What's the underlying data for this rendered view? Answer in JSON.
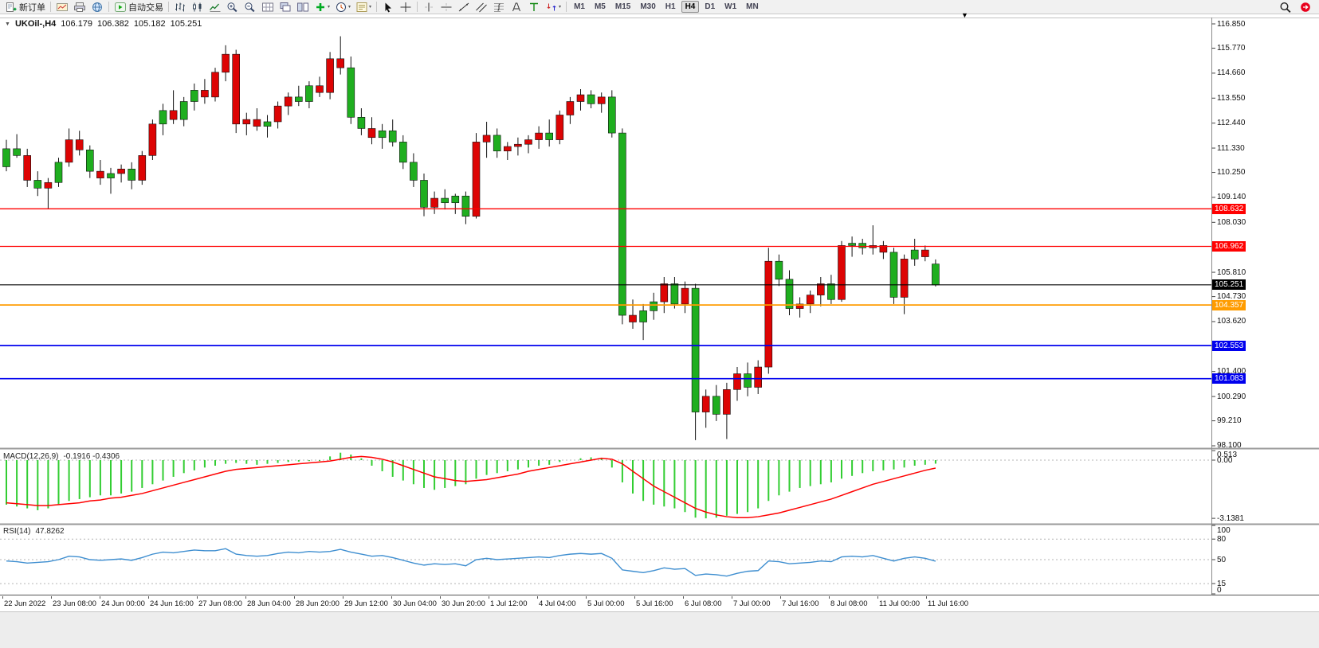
{
  "toolbar": {
    "items": [
      {
        "type": "button",
        "name": "new-order",
        "icon": "new-order",
        "label": "新订单"
      },
      {
        "type": "sep"
      },
      {
        "type": "button",
        "name": "charts",
        "icon": "chart-window"
      },
      {
        "type": "button",
        "name": "print-preview",
        "icon": "printer"
      },
      {
        "type": "button",
        "name": "web-community",
        "icon": "globe"
      },
      {
        "type": "sep"
      },
      {
        "type": "button",
        "name": "auto-trading",
        "icon": "play",
        "label": "自动交易"
      },
      {
        "type": "sep"
      },
      {
        "type": "button",
        "name": "bar-chart-mode",
        "icon": "bars"
      },
      {
        "type": "button",
        "name": "candlestick-mode",
        "icon": "candles"
      },
      {
        "type": "button",
        "name": "line-chart-mode",
        "icon": "linechart"
      },
      {
        "type": "button",
        "name": "zoom-in",
        "icon": "zoom-in"
      },
      {
        "type": "button",
        "name": "zoom-out",
        "icon": "zoom-out"
      },
      {
        "type": "button",
        "name": "auto-arrange",
        "icon": "grid"
      },
      {
        "type": "button",
        "name": "cascade-windows",
        "icon": "cascade"
      },
      {
        "type": "button",
        "name": "tile-windows",
        "icon": "tile"
      },
      {
        "type": "button",
        "name": "indicators",
        "icon": "plus-green",
        "dropdown": true
      },
      {
        "type": "button",
        "name": "periods",
        "icon": "clock",
        "dropdown": true
      },
      {
        "type": "button",
        "name": "templates",
        "icon": "template",
        "dropdown": true
      },
      {
        "type": "sep"
      },
      {
        "type": "button",
        "name": "cursor",
        "icon": "cursor"
      },
      {
        "type": "button",
        "name": "crosshair",
        "icon": "crosshair"
      },
      {
        "type": "sep"
      },
      {
        "type": "button",
        "name": "vertical-line",
        "icon": "vline"
      },
      {
        "type": "button",
        "name": "horizontal-line",
        "icon": "hline"
      },
      {
        "type": "button",
        "name": "trend-line",
        "icon": "trendline"
      },
      {
        "type": "button",
        "name": "equidistant-channel",
        "icon": "channel"
      },
      {
        "type": "button",
        "name": "fibonacci-retracement",
        "icon": "fibo"
      },
      {
        "type": "button",
        "name": "text",
        "icon": "text-a"
      },
      {
        "type": "button",
        "name": "text-label",
        "icon": "text-t"
      },
      {
        "type": "button",
        "name": "arrow-objects",
        "icon": "arrows",
        "dropdown": true
      },
      {
        "type": "sep"
      }
    ],
    "timeframes": {
      "options": [
        "M1",
        "M5",
        "M15",
        "M30",
        "H1",
        "H4",
        "D1",
        "W1",
        "MN"
      ],
      "active": "H4"
    },
    "right_items": [
      {
        "type": "button",
        "name": "search",
        "icon": "magnifier"
      },
      {
        "type": "button",
        "name": "community-account",
        "icon": "red-dot"
      }
    ]
  },
  "chart": {
    "info": {
      "symbol_period": "UKOil-,H4",
      "open": "106.179",
      "high": "106.382",
      "low": "105.182",
      "close": "105.251"
    },
    "price_axis_ticks": [
      "116.850",
      "115.770",
      "114.660",
      "113.550",
      "112.440",
      "111.330",
      "110.250",
      "109.140",
      "108.030",
      "105.810",
      "104.730",
      "103.620",
      "101.400",
      "100.290",
      "99.210",
      "98.100"
    ],
    "levels": [
      {
        "price": "108.632",
        "value": 108.632,
        "color": "#ff0000",
        "width": 1.3
      },
      {
        "price": "106.962",
        "value": 106.962,
        "color": "#ff0000",
        "width": 1.3
      },
      {
        "price": "105.251",
        "value": 105.251,
        "color": "#000000",
        "width": 1.1
      },
      {
        "price": "104.357",
        "value": 104.357,
        "color": "#ff9c00",
        "width": 1.7
      },
      {
        "price": "102.553",
        "value": 102.553,
        "color": "#0000ee",
        "width": 1.7
      },
      {
        "price": "101.083",
        "value": 101.083,
        "color": "#0000ee",
        "width": 1.7
      }
    ],
    "time_axis": [
      "22 Jun 2022",
      "23 Jun 08:00",
      "24 Jun 00:00",
      "24 Jun 16:00",
      "27 Jun 08:00",
      "28 Jun 04:00",
      "28 Jun 20:00",
      "29 Jun 12:00",
      "30 Jun 04:00",
      "30 Jun 20:00",
      "1 Jul 12:00",
      "4 Jul 04:00",
      "5 Jul 00:00",
      "5 Jul 16:00",
      "6 Jul 08:00",
      "7 Jul 00:00",
      "7 Jul 16:00",
      "8 Jul 08:00",
      "11 Jul 00:00",
      "11 Jul 16:00"
    ]
  },
  "macd": {
    "label": "MACD(12,26,9)",
    "values_text": "-0.1916 -0.4306",
    "scale": [
      "0.513",
      "0.00",
      "-3.1381"
    ],
    "scale_values": [
      0.513,
      0,
      -3.1381
    ]
  },
  "rsi": {
    "label": "RSI(14)",
    "value_text": "47.8262",
    "scale": [
      "100",
      "80",
      "50",
      "15",
      "0"
    ],
    "levels_dashed": [
      80,
      50,
      15
    ]
  },
  "colors": {
    "candle_green": "#1fae1f",
    "candle_red": "#dd0404",
    "macd_hist": "#32cd32",
    "macd_signal": "#ff0000",
    "rsi_line": "#3e8ed0"
  },
  "chart_data": [
    {
      "type": "candlestick",
      "title": "UKOil- H4",
      "price_range": [
        98.1,
        116.85
      ],
      "columns": [
        "open",
        "high",
        "low",
        "close",
        "color"
      ],
      "candles": [
        [
          110.5,
          111.7,
          110.3,
          111.3,
          "g"
        ],
        [
          111.3,
          111.95,
          110.9,
          111.0,
          "g"
        ],
        [
          111.0,
          111.3,
          109.6,
          109.9,
          "r"
        ],
        [
          109.9,
          110.3,
          109.2,
          109.55,
          "g"
        ],
        [
          109.55,
          110.0,
          108.63,
          109.8,
          "r"
        ],
        [
          109.8,
          110.9,
          109.6,
          110.7,
          "g"
        ],
        [
          110.7,
          112.2,
          110.5,
          111.7,
          "r"
        ],
        [
          111.7,
          112.1,
          111.0,
          111.25,
          "r"
        ],
        [
          111.25,
          111.45,
          110.0,
          110.3,
          "g"
        ],
        [
          110.3,
          110.8,
          109.7,
          110.0,
          "r"
        ],
        [
          110.0,
          110.45,
          109.3,
          110.2,
          "g"
        ],
        [
          110.2,
          110.6,
          109.8,
          110.4,
          "r"
        ],
        [
          110.4,
          110.7,
          109.5,
          109.9,
          "g"
        ],
        [
          109.9,
          111.2,
          109.7,
          111.0,
          "r"
        ],
        [
          111.0,
          112.6,
          110.8,
          112.4,
          "r"
        ],
        [
          112.4,
          113.3,
          111.9,
          113.0,
          "g"
        ],
        [
          113.0,
          113.9,
          112.4,
          112.6,
          "r"
        ],
        [
          112.6,
          113.6,
          112.3,
          113.4,
          "g"
        ],
        [
          113.4,
          114.2,
          113.0,
          113.9,
          "g"
        ],
        [
          113.9,
          114.4,
          113.3,
          113.6,
          "r"
        ],
        [
          113.6,
          114.9,
          113.4,
          114.7,
          "r"
        ],
        [
          114.7,
          115.9,
          114.3,
          115.5,
          "r"
        ],
        [
          115.5,
          115.7,
          112.0,
          112.4,
          "r"
        ],
        [
          112.4,
          112.9,
          111.9,
          112.6,
          "r"
        ],
        [
          112.6,
          113.1,
          112.1,
          112.3,
          "r"
        ],
        [
          112.3,
          112.8,
          111.8,
          112.5,
          "g"
        ],
        [
          112.5,
          113.4,
          112.2,
          113.2,
          "r"
        ],
        [
          113.2,
          113.8,
          112.8,
          113.6,
          "r"
        ],
        [
          113.6,
          114.1,
          113.2,
          113.4,
          "g"
        ],
        [
          113.4,
          114.3,
          113.1,
          114.1,
          "g"
        ],
        [
          114.1,
          114.5,
          113.6,
          113.8,
          "r"
        ],
        [
          113.8,
          115.6,
          113.5,
          115.3,
          "r"
        ],
        [
          115.3,
          116.3,
          114.6,
          114.9,
          "r"
        ],
        [
          114.9,
          115.4,
          112.4,
          112.7,
          "g"
        ],
        [
          112.7,
          113.1,
          111.9,
          112.2,
          "g"
        ],
        [
          112.2,
          112.7,
          111.5,
          111.8,
          "r"
        ],
        [
          111.8,
          112.4,
          111.3,
          112.1,
          "g"
        ],
        [
          112.1,
          112.6,
          111.4,
          111.6,
          "g"
        ],
        [
          111.6,
          111.9,
          110.4,
          110.7,
          "g"
        ],
        [
          110.7,
          111.1,
          109.6,
          109.9,
          "g"
        ],
        [
          109.9,
          110.2,
          108.3,
          108.7,
          "g"
        ],
        [
          108.7,
          109.4,
          108.4,
          109.1,
          "r"
        ],
        [
          109.1,
          109.5,
          108.6,
          108.9,
          "g"
        ],
        [
          108.9,
          109.3,
          108.4,
          109.2,
          "g"
        ],
        [
          109.2,
          109.4,
          107.95,
          108.3,
          "g"
        ],
        [
          108.3,
          112.0,
          108.2,
          111.6,
          "r"
        ],
        [
          111.6,
          112.5,
          110.9,
          111.9,
          "r"
        ],
        [
          111.9,
          112.2,
          110.9,
          111.2,
          "g"
        ],
        [
          111.2,
          111.6,
          110.8,
          111.4,
          "r"
        ],
        [
          111.4,
          111.8,
          111.0,
          111.5,
          "r"
        ],
        [
          111.5,
          111.9,
          111.1,
          111.7,
          "r"
        ],
        [
          111.7,
          112.3,
          111.3,
          112.0,
          "r"
        ],
        [
          112.0,
          112.6,
          111.4,
          111.7,
          "g"
        ],
        [
          111.7,
          113.0,
          111.5,
          112.8,
          "r"
        ],
        [
          112.8,
          113.6,
          112.4,
          113.4,
          "r"
        ],
        [
          113.4,
          113.95,
          113.0,
          113.7,
          "r"
        ],
        [
          113.7,
          113.9,
          113.1,
          113.3,
          "g"
        ],
        [
          113.3,
          113.8,
          112.9,
          113.6,
          "r"
        ],
        [
          113.6,
          113.9,
          111.8,
          112.0,
          "g"
        ],
        [
          112.0,
          112.2,
          103.5,
          103.9,
          "g"
        ],
        [
          103.9,
          104.6,
          103.3,
          103.6,
          "r"
        ],
        [
          103.6,
          104.4,
          102.8,
          104.1,
          "g"
        ],
        [
          104.1,
          104.9,
          103.7,
          104.5,
          "g"
        ],
        [
          104.5,
          105.6,
          104.0,
          105.3,
          "r"
        ],
        [
          105.3,
          105.6,
          104.2,
          104.4,
          "g"
        ],
        [
          104.4,
          105.4,
          104.0,
          105.1,
          "r"
        ],
        [
          105.1,
          105.3,
          98.35,
          99.6,
          "g"
        ],
        [
          99.6,
          100.6,
          98.9,
          100.3,
          "r"
        ],
        [
          100.3,
          100.8,
          99.2,
          99.5,
          "g"
        ],
        [
          99.5,
          100.9,
          98.4,
          100.6,
          "r"
        ],
        [
          100.6,
          101.6,
          100.1,
          101.3,
          "r"
        ],
        [
          101.3,
          101.8,
          100.3,
          100.7,
          "g"
        ],
        [
          100.7,
          101.9,
          100.4,
          101.6,
          "r"
        ],
        [
          101.6,
          106.9,
          101.3,
          106.3,
          "r"
        ],
        [
          106.3,
          106.6,
          105.2,
          105.5,
          "g"
        ],
        [
          105.5,
          105.9,
          103.9,
          104.2,
          "g"
        ],
        [
          104.2,
          104.7,
          103.8,
          104.4,
          "r"
        ],
        [
          104.4,
          105.0,
          104.0,
          104.8,
          "r"
        ],
        [
          104.8,
          105.6,
          104.3,
          105.3,
          "r"
        ],
        [
          105.3,
          105.7,
          104.4,
          104.6,
          "g"
        ],
        [
          104.6,
          107.2,
          104.5,
          107.0,
          "r"
        ],
        [
          107.0,
          107.4,
          106.5,
          107.1,
          "g"
        ],
        [
          107.1,
          107.3,
          106.6,
          106.9,
          "g"
        ],
        [
          106.9,
          107.9,
          106.6,
          107.0,
          "r"
        ],
        [
          107.0,
          107.2,
          106.4,
          106.7,
          "r"
        ],
        [
          106.7,
          106.9,
          104.4,
          104.7,
          "g"
        ],
        [
          104.7,
          106.6,
          103.95,
          106.4,
          "r"
        ],
        [
          106.4,
          107.3,
          106.1,
          106.8,
          "g"
        ],
        [
          106.8,
          107.0,
          106.3,
          106.5,
          "r"
        ],
        [
          106.179,
          106.382,
          105.182,
          105.251,
          "g"
        ]
      ]
    },
    {
      "type": "bar",
      "name": "MACD histogram",
      "params": "12,26,9",
      "current": -0.1916,
      "range": [
        -3.1381,
        0.513
      ],
      "values": [
        -2.4,
        -2.5,
        -2.6,
        -2.7,
        -2.6,
        -2.4,
        -2.2,
        -2.1,
        -2.0,
        -1.9,
        -1.9,
        -1.8,
        -1.7,
        -1.5,
        -1.3,
        -1.1,
        -0.9,
        -0.7,
        -0.55,
        -0.4,
        -0.3,
        -0.2,
        -0.15,
        -0.2,
        -0.25,
        -0.2,
        -0.15,
        -0.1,
        -0.08,
        -0.05,
        -0.05,
        0.2,
        0.4,
        0.3,
        0.1,
        -0.3,
        -0.6,
        -0.9,
        -1.1,
        -1.3,
        -1.5,
        -1.6,
        -1.5,
        -1.4,
        -1.3,
        -1.0,
        -0.8,
        -0.7,
        -0.6,
        -0.5,
        -0.4,
        -0.3,
        -0.25,
        -0.1,
        0.0,
        0.1,
        0.15,
        0.1,
        -0.4,
        -1.2,
        -1.8,
        -2.2,
        -2.4,
        -2.5,
        -2.6,
        -2.8,
        -3.1,
        -3.14,
        -3.1,
        -3.0,
        -2.9,
        -2.8,
        -2.6,
        -2.2,
        -1.9,
        -1.7,
        -1.5,
        -1.4,
        -1.3,
        -1.2,
        -1.0,
        -0.85,
        -0.7,
        -0.6,
        -0.55,
        -0.5,
        -0.4,
        -0.3,
        -0.25,
        -0.1916
      ]
    },
    {
      "type": "line",
      "name": "MACD signal",
      "current": -0.4306,
      "values": [
        -2.3,
        -2.35,
        -2.4,
        -2.45,
        -2.45,
        -2.4,
        -2.35,
        -2.3,
        -2.2,
        -2.15,
        -2.05,
        -2.0,
        -1.9,
        -1.8,
        -1.65,
        -1.5,
        -1.35,
        -1.2,
        -1.05,
        -0.9,
        -0.75,
        -0.6,
        -0.5,
        -0.45,
        -0.4,
        -0.35,
        -0.3,
        -0.25,
        -0.2,
        -0.15,
        -0.1,
        -0.05,
        0.05,
        0.15,
        0.2,
        0.15,
        0.05,
        -0.1,
        -0.3,
        -0.5,
        -0.7,
        -0.9,
        -1.0,
        -1.1,
        -1.15,
        -1.1,
        -1.05,
        -0.95,
        -0.85,
        -0.75,
        -0.6,
        -0.5,
        -0.4,
        -0.3,
        -0.2,
        -0.1,
        0.0,
        0.1,
        0.05,
        -0.2,
        -0.6,
        -1.0,
        -1.4,
        -1.7,
        -2.0,
        -2.3,
        -2.6,
        -2.8,
        -2.95,
        -3.05,
        -3.1,
        -3.1,
        -3.05,
        -2.95,
        -2.85,
        -2.7,
        -2.55,
        -2.4,
        -2.25,
        -2.1,
        -1.9,
        -1.7,
        -1.5,
        -1.3,
        -1.15,
        -1.0,
        -0.85,
        -0.7,
        -0.55,
        -0.4306
      ]
    },
    {
      "type": "line",
      "name": "RSI",
      "period": 14,
      "current": 47.8262,
      "range": [
        0,
        100
      ],
      "values": [
        48,
        47,
        45,
        46,
        47,
        50,
        55,
        54,
        50,
        49,
        50,
        51,
        49,
        53,
        58,
        61,
        60,
        62,
        64,
        63,
        63,
        66,
        58,
        56,
        55,
        56,
        59,
        61,
        60,
        62,
        61,
        62,
        65,
        61,
        58,
        55,
        56,
        53,
        49,
        45,
        42,
        44,
        43,
        44,
        41,
        50,
        52,
        50,
        51,
        52,
        53,
        54,
        53,
        56,
        58,
        59,
        58,
        59,
        52,
        35,
        33,
        31,
        34,
        38,
        36,
        37,
        27,
        29,
        28,
        26,
        30,
        33,
        34,
        48,
        47,
        44,
        45,
        46,
        48,
        47,
        54,
        55,
        54,
        56,
        52,
        48,
        52,
        54,
        52,
        47.8
      ]
    }
  ]
}
